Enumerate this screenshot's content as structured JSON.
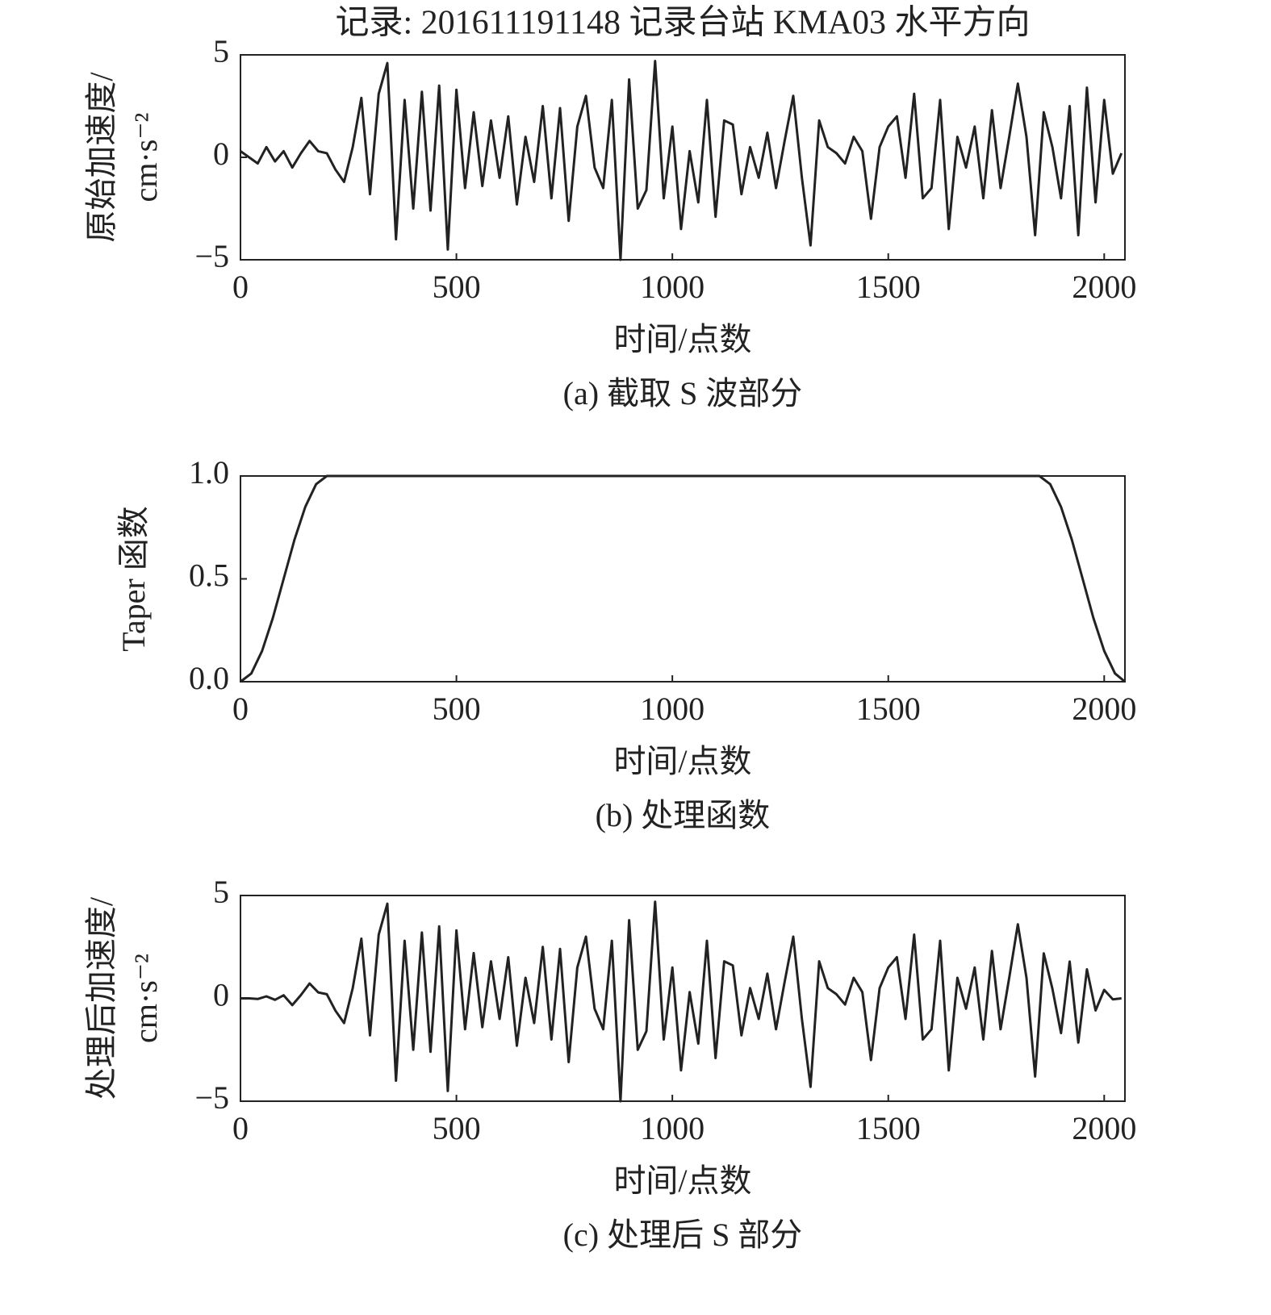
{
  "title": "记录: 201611191148 记录台站 KMA03 水平方向",
  "chart_data": [
    {
      "type": "line",
      "caption": "(a) 截取 S 波部分",
      "xlabel": "时间/点数",
      "ylabel": [
        "原始加速度/",
        "cm·s⁻²"
      ],
      "xlim": [
        0,
        2048
      ],
      "xticks": [
        0,
        500,
        1000,
        1500,
        2000
      ],
      "ylim": [
        -5,
        5
      ],
      "yticks": [
        {
          "value": -5,
          "label": "−5"
        },
        0,
        5
      ],
      "x": [
        0,
        20,
        40,
        60,
        80,
        100,
        120,
        140,
        160,
        180,
        200,
        220,
        240,
        260,
        280,
        300,
        320,
        340,
        360,
        380,
        400,
        420,
        440,
        460,
        480,
        500,
        520,
        540,
        560,
        580,
        600,
        620,
        640,
        660,
        680,
        700,
        720,
        740,
        760,
        780,
        800,
        820,
        840,
        860,
        880,
        900,
        920,
        940,
        960,
        980,
        1000,
        1020,
        1040,
        1060,
        1080,
        1100,
        1120,
        1140,
        1160,
        1180,
        1200,
        1220,
        1240,
        1260,
        1280,
        1300,
        1320,
        1340,
        1360,
        1380,
        1400,
        1420,
        1440,
        1460,
        1480,
        1500,
        1520,
        1540,
        1560,
        1580,
        1600,
        1620,
        1640,
        1660,
        1680,
        1700,
        1720,
        1740,
        1760,
        1780,
        1800,
        1820,
        1840,
        1860,
        1880,
        1900,
        1920,
        1940,
        1960,
        1980,
        2000,
        2020,
        2040
      ],
      "series": [
        {
          "color": "#222222",
          "values": [
            0.3,
            0,
            -0.3,
            0.5,
            -0.2,
            0.3,
            -0.5,
            0.2,
            0.8,
            0.3,
            0.2,
            -0.6,
            -1.2,
            0.5,
            2.9,
            -1.8,
            3.1,
            4.6,
            -4.0,
            2.8,
            -2.5,
            3.2,
            -2.6,
            3.5,
            -4.5,
            3.3,
            -1.5,
            2.2,
            -1.4,
            1.8,
            -1.0,
            2.0,
            -2.3,
            1.0,
            -1.2,
            2.5,
            -2.0,
            2.4,
            -3.1,
            1.5,
            3.0,
            -0.5,
            -1.5,
            2.8,
            -5.0,
            3.8,
            -2.5,
            -1.6,
            4.7,
            -2.0,
            1.5,
            -3.5,
            0.3,
            -2.2,
            2.8,
            -2.9,
            1.8,
            1.6,
            -1.8,
            0.5,
            -1.0,
            1.2,
            -1.5,
            0.8,
            3.0,
            -1.0,
            -4.3,
            1.8,
            0.5,
            0.2,
            -0.3,
            1.0,
            0.3,
            -3.0,
            0.5,
            1.5,
            2.0,
            -1.0,
            3.1,
            -2.0,
            -1.5,
            2.8,
            -3.5,
            1.0,
            -0.5,
            1.5,
            -2.0,
            2.3,
            -1.5,
            1.0,
            3.6,
            1.0,
            -3.8,
            2.2,
            0.5,
            -2.0,
            2.5,
            -3.8,
            3.4,
            -2.2,
            2.8,
            -0.8,
            0.2
          ]
        }
      ]
    },
    {
      "type": "line",
      "caption": "(b) 处理函数",
      "xlabel": "时间/点数",
      "ylabel": [
        "Taper 函数"
      ],
      "xlim": [
        0,
        2048
      ],
      "xticks": [
        0,
        500,
        1000,
        1500,
        2000
      ],
      "ylim": [
        0,
        1
      ],
      "yticks": [
        {
          "value": 0,
          "label": "0.0"
        },
        {
          "value": 0.5,
          "label": "0.5"
        },
        {
          "value": 1,
          "label": "1.0"
        }
      ],
      "x": [
        0,
        25,
        50,
        75,
        100,
        125,
        150,
        175,
        200,
        1850,
        1875,
        1900,
        1925,
        1950,
        1975,
        2000,
        2025,
        2048
      ],
      "series": [
        {
          "color": "#222222",
          "values": [
            0,
            0.04,
            0.15,
            0.31,
            0.5,
            0.69,
            0.85,
            0.96,
            1,
            1,
            0.96,
            0.85,
            0.69,
            0.5,
            0.31,
            0.15,
            0.04,
            0
          ]
        }
      ]
    },
    {
      "type": "line",
      "caption": "(c) 处理后 S 部分",
      "xlabel": "时间/点数",
      "ylabel": [
        "处理后加速度/",
        "cm·s⁻²"
      ],
      "xlim": [
        0,
        2048
      ],
      "xticks": [
        0,
        500,
        1000,
        1500,
        2000
      ],
      "ylim": [
        -5,
        5
      ],
      "yticks": [
        {
          "value": -5,
          "label": "−5"
        },
        0,
        5
      ],
      "x": [
        0,
        20,
        40,
        60,
        80,
        100,
        120,
        140,
        160,
        180,
        200,
        220,
        240,
        260,
        280,
        300,
        320,
        340,
        360,
        380,
        400,
        420,
        440,
        460,
        480,
        500,
        520,
        540,
        560,
        580,
        600,
        620,
        640,
        660,
        680,
        700,
        720,
        740,
        760,
        780,
        800,
        820,
        840,
        860,
        880,
        900,
        920,
        940,
        960,
        980,
        1000,
        1020,
        1040,
        1060,
        1080,
        1100,
        1120,
        1140,
        1160,
        1180,
        1200,
        1220,
        1240,
        1260,
        1280,
        1300,
        1320,
        1340,
        1360,
        1380,
        1400,
        1420,
        1440,
        1460,
        1480,
        1500,
        1520,
        1540,
        1560,
        1580,
        1600,
        1620,
        1640,
        1660,
        1680,
        1700,
        1720,
        1740,
        1760,
        1780,
        1800,
        1820,
        1840,
        1860,
        1880,
        1900,
        1920,
        1940,
        1960,
        1980,
        2000,
        2020,
        2040
      ],
      "series": [
        {
          "color": "#222222",
          "values": [
            0,
            0,
            -0.03,
            0.1,
            -0.07,
            0.15,
            -0.33,
            0.16,
            0.72,
            0.29,
            0.2,
            -0.6,
            -1.2,
            0.5,
            2.9,
            -1.8,
            3.1,
            4.6,
            -4.0,
            2.8,
            -2.5,
            3.2,
            -2.6,
            3.5,
            -4.5,
            3.3,
            -1.5,
            2.2,
            -1.4,
            1.8,
            -1.0,
            2.0,
            -2.3,
            1.0,
            -1.2,
            2.5,
            -2.0,
            2.4,
            -3.1,
            1.5,
            3.0,
            -0.5,
            -1.5,
            2.8,
            -5.0,
            3.8,
            -2.5,
            -1.6,
            4.7,
            -2.0,
            1.5,
            -3.5,
            0.3,
            -2.2,
            2.8,
            -2.9,
            1.8,
            1.6,
            -1.8,
            0.5,
            -1.0,
            1.2,
            -1.5,
            0.8,
            3.0,
            -1.0,
            -4.3,
            1.8,
            0.5,
            0.2,
            -0.3,
            1.0,
            0.3,
            -3.0,
            0.5,
            1.5,
            2.0,
            -1.0,
            3.1,
            -2.0,
            -1.5,
            2.8,
            -3.5,
            1.0,
            -0.5,
            1.5,
            -2.0,
            2.3,
            -1.5,
            1.0,
            3.6,
            1.0,
            -3.8,
            2.19,
            0.47,
            -1.69,
            1.79,
            -2.15,
            1.41,
            -0.59,
            0.41,
            -0.05,
            0
          ]
        }
      ]
    }
  ]
}
